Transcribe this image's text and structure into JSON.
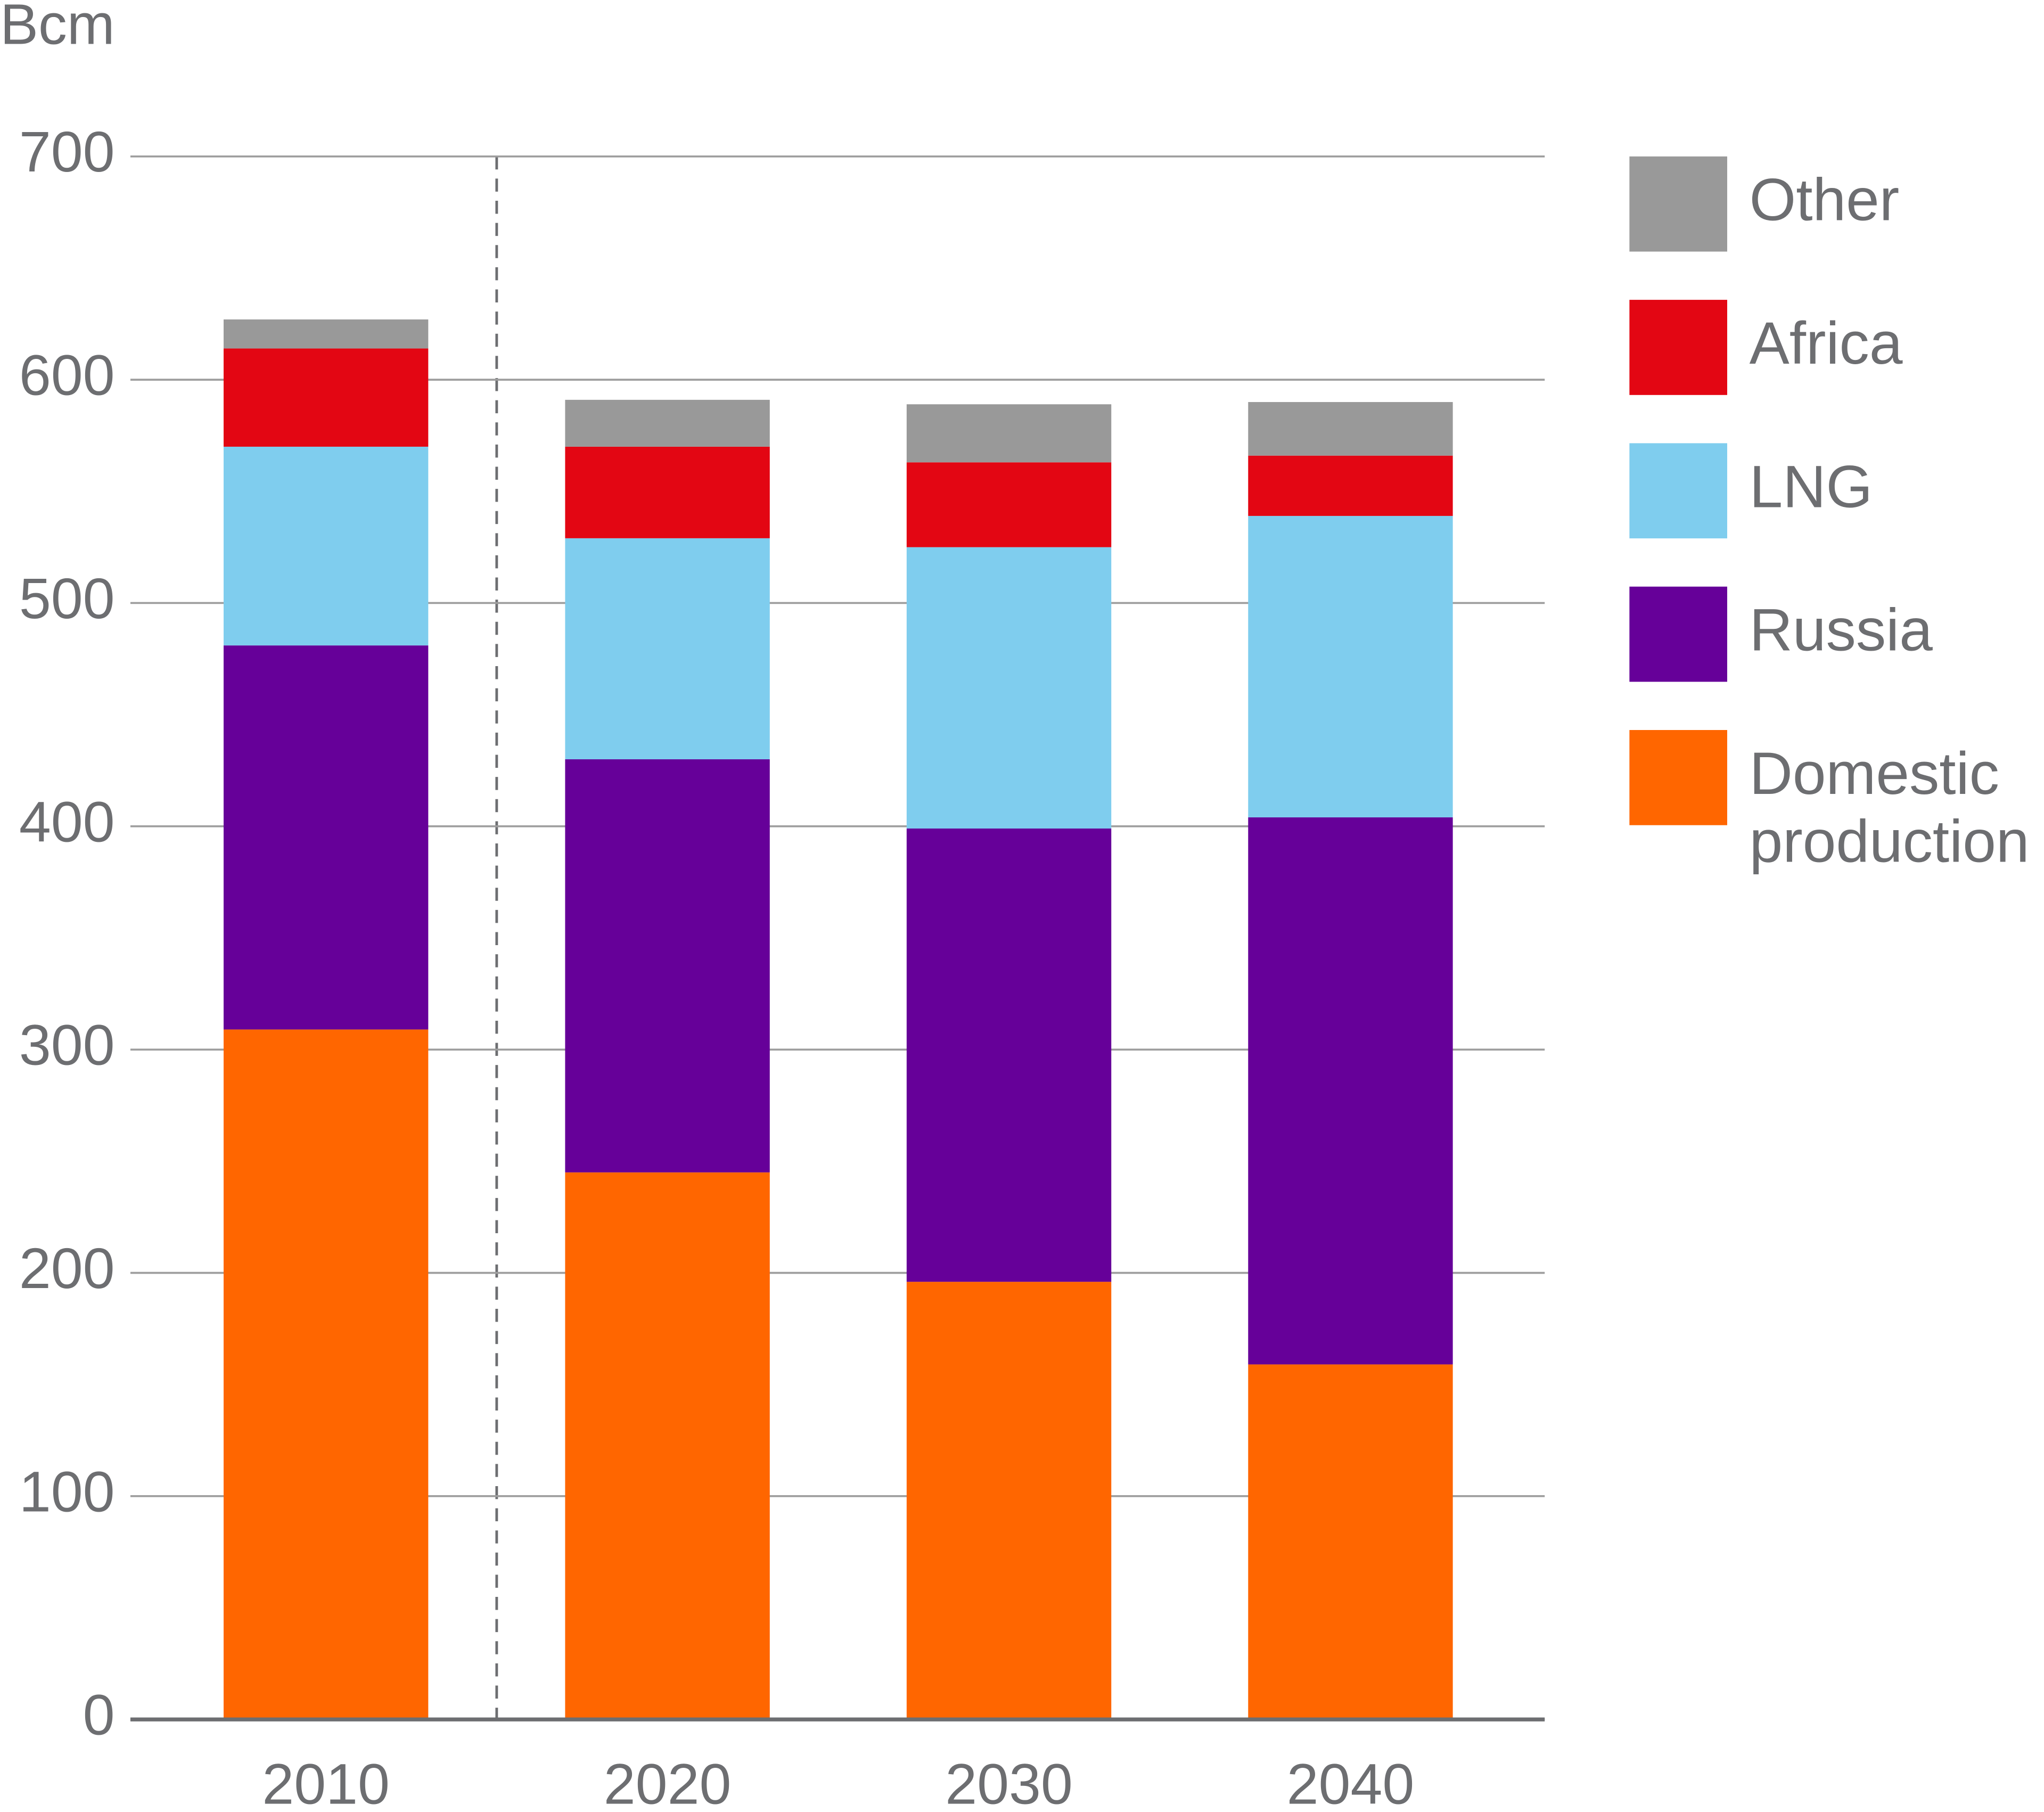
{
  "chart_data": {
    "type": "stacked_bar",
    "y_axis_label": "Bcm",
    "categories": [
      "2010",
      "2020",
      "2030",
      "2040"
    ],
    "series": [
      {
        "name": "Domestic production",
        "color": "#ff6600",
        "values": [
          309,
          245,
          196,
          159
        ]
      },
      {
        "name": "Russia",
        "color": "#660099",
        "values": [
          172,
          185,
          203,
          245
        ]
      },
      {
        "name": "LNG",
        "color": "#7fcdee",
        "values": [
          89,
          99,
          126,
          135
        ]
      },
      {
        "name": "Africa",
        "color": "#e30613",
        "values": [
          44,
          41,
          38,
          27
        ]
      },
      {
        "name": "Other",
        "color": "#999999",
        "values": [
          13,
          21,
          26,
          24
        ]
      }
    ],
    "ylim": [
      0,
      700
    ],
    "yticks": [
      0,
      100,
      200,
      300,
      400,
      500,
      600,
      700
    ],
    "grid": true,
    "legend": "right"
  }
}
